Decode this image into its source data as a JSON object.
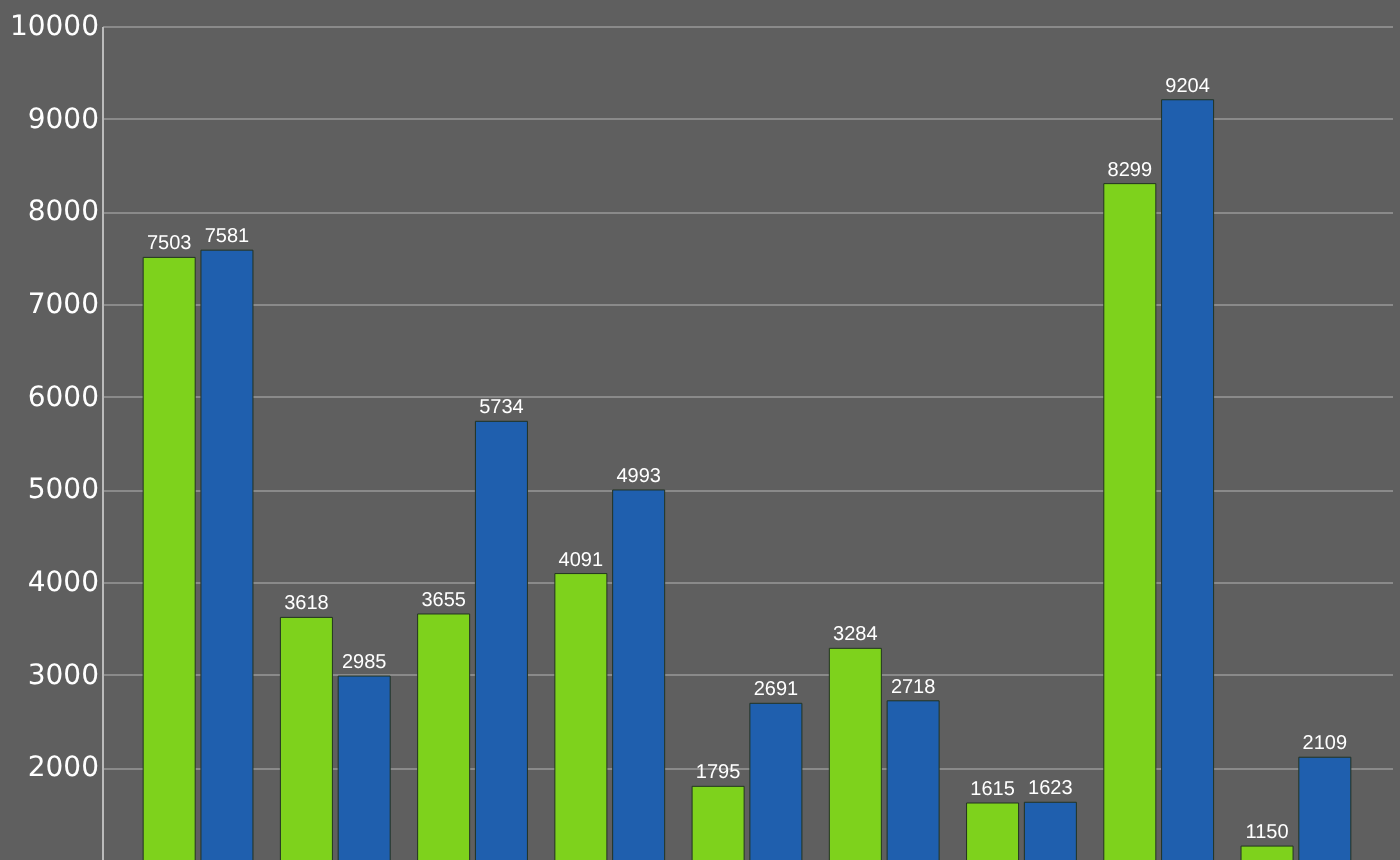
{
  "chart_data": {
    "type": "bar",
    "categories": [
      null,
      null,
      null,
      null,
      null,
      null,
      null,
      null,
      null
    ],
    "series": [
      {
        "color": "#7ed21c",
        "values": [
          7503,
          3618,
          3655,
          4091,
          1795,
          3284,
          1615,
          8299,
          1150
        ]
      },
      {
        "color": "#1f5fae",
        "values": [
          7581,
          2985,
          5734,
          4993,
          2691,
          2718,
          1623,
          9204,
          2109
        ]
      }
    ],
    "ylim": [
      1000,
      10000
    ],
    "yticks": [
      2000,
      3000,
      4000,
      5000,
      6000,
      7000,
      8000,
      9000,
      10000
    ],
    "grid": "y",
    "legend": false,
    "tick_labels": "y",
    "data_labels": true
  }
}
